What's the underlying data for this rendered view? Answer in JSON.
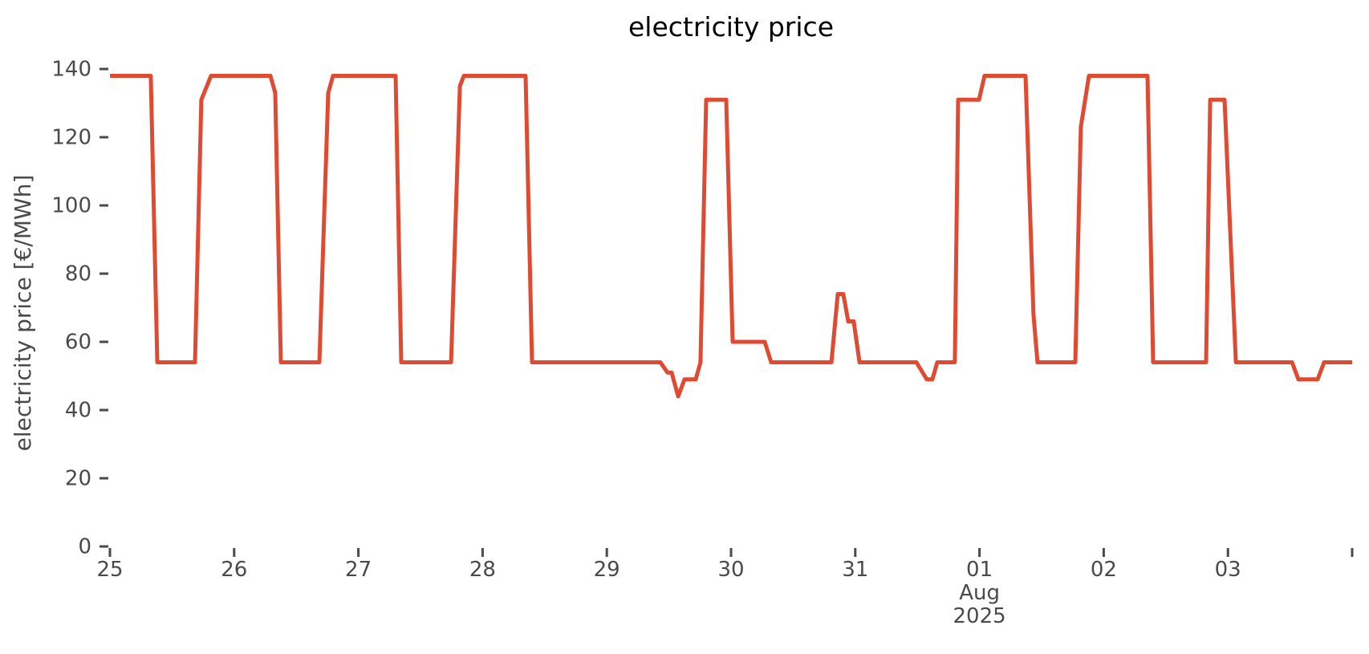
{
  "figure": {
    "title": "electricity price",
    "background": "#ffffff"
  },
  "colors": {
    "line": "#de4a32",
    "tick_text": "#4a4a4a",
    "title_text": "#000000",
    "background": "#ffffff"
  },
  "chart_data": {
    "type": "line",
    "title": "electricity price",
    "xlabel": "",
    "ylabel": "electricity price [€/MWh]",
    "grid": false,
    "legend": false,
    "x_axis": {
      "unit": "date",
      "start": "2025-07-25T00:00",
      "end": "2025-08-04T00:00",
      "tick_positions_days": [
        0,
        1,
        2,
        3,
        4,
        5,
        6,
        7,
        8,
        9,
        10
      ],
      "tick_labels": [
        "25",
        "26",
        "27",
        "28",
        "29",
        "30",
        "31",
        "01",
        "02",
        "03",
        ""
      ],
      "month_label": "Aug",
      "year_label": "2025",
      "month_year_anchor_day": 7
    },
    "y_axis": {
      "ticks": [
        0,
        20,
        40,
        60,
        80,
        100,
        120,
        140
      ],
      "lim": [
        0,
        145
      ]
    },
    "series": [
      {
        "name": "electricity price",
        "color": "#de4a32",
        "points_day_value": [
          [
            0.0,
            138
          ],
          [
            0.329,
            138
          ],
          [
            0.381,
            54
          ],
          [
            0.685,
            54
          ],
          [
            0.736,
            131
          ],
          [
            0.814,
            138
          ],
          [
            1.292,
            138
          ],
          [
            1.331,
            133
          ],
          [
            1.376,
            54
          ],
          [
            1.686,
            54
          ],
          [
            1.757,
            133
          ],
          [
            1.796,
            138
          ],
          [
            2.3,
            138
          ],
          [
            2.345,
            54
          ],
          [
            2.746,
            54
          ],
          [
            2.817,
            135
          ],
          [
            2.849,
            138
          ],
          [
            3.346,
            138
          ],
          [
            3.398,
            54
          ],
          [
            4.431,
            54
          ],
          [
            4.489,
            51
          ],
          [
            4.522,
            51
          ],
          [
            4.574,
            44
          ],
          [
            4.625,
            49
          ],
          [
            4.716,
            49
          ],
          [
            4.754,
            54
          ],
          [
            4.8,
            131
          ],
          [
            4.961,
            131
          ],
          [
            5.013,
            60
          ],
          [
            5.271,
            60
          ],
          [
            5.323,
            54
          ],
          [
            5.808,
            54
          ],
          [
            5.859,
            74
          ],
          [
            5.904,
            74
          ],
          [
            5.943,
            66
          ],
          [
            5.988,
            66
          ],
          [
            6.034,
            54
          ],
          [
            6.492,
            54
          ],
          [
            6.576,
            49
          ],
          [
            6.621,
            49
          ],
          [
            6.66,
            54
          ],
          [
            6.802,
            54
          ],
          [
            6.828,
            131
          ],
          [
            6.996,
            131
          ],
          [
            7.041,
            138
          ],
          [
            7.371,
            138
          ],
          [
            7.435,
            68
          ],
          [
            7.467,
            54
          ],
          [
            7.771,
            54
          ],
          [
            7.816,
            123
          ],
          [
            7.881,
            138
          ],
          [
            8.353,
            138
          ],
          [
            8.398,
            54
          ],
          [
            8.824,
            54
          ],
          [
            8.857,
            131
          ],
          [
            8.973,
            131
          ],
          [
            9.064,
            54
          ],
          [
            9.516,
            54
          ],
          [
            9.567,
            49
          ],
          [
            9.722,
            49
          ],
          [
            9.774,
            54
          ],
          [
            10.0,
            54
          ]
        ]
      }
    ]
  }
}
